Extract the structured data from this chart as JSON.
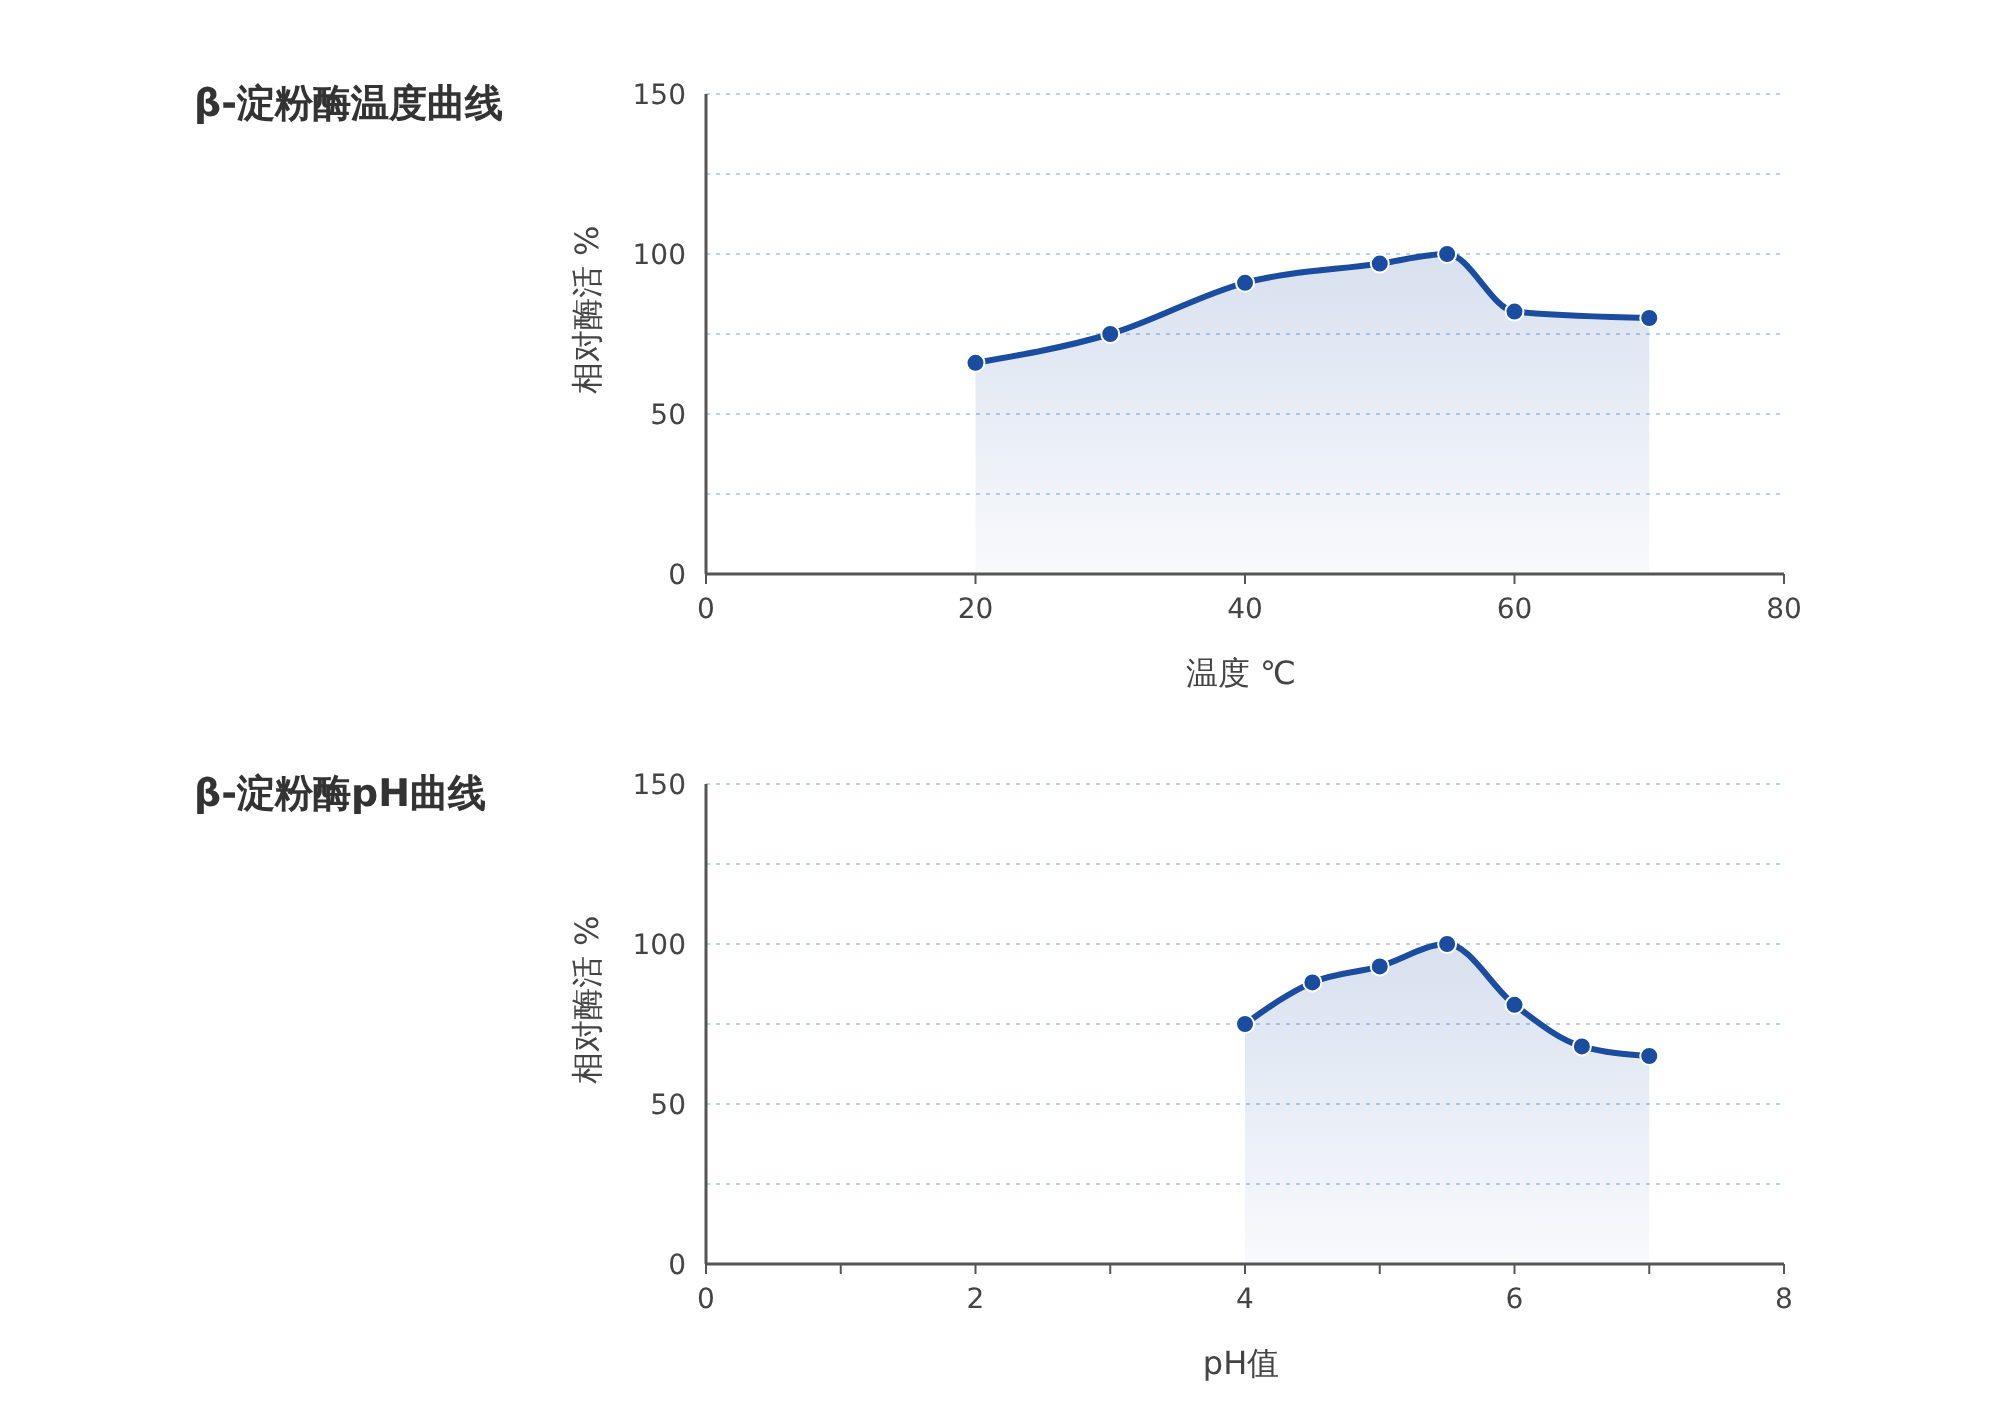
{
  "chart_data": [
    {
      "type": "area",
      "title": "β-淀粉酶温度曲线",
      "xlabel": "温度 ℃",
      "ylabel": "相对酶活 %",
      "xlim": [
        0,
        80
      ],
      "xticks": [
        0,
        20,
        40,
        60,
        80
      ],
      "ylim": [
        0,
        150
      ],
      "yticks": [
        0,
        {
          "value": 25,
          "label": null
        },
        50,
        {
          "value": 75,
          "label": null
        },
        100,
        {
          "value": 125,
          "label": null
        },
        150
      ],
      "grid": "y",
      "marker": "circle",
      "line_style": "solid",
      "series": [
        {
          "color": "#1a4ca0",
          "x": [
            20,
            30,
            40,
            50,
            55,
            60,
            70
          ],
          "values": [
            66,
            75,
            91,
            97,
            100,
            82,
            80
          ]
        }
      ]
    },
    {
      "type": "area",
      "title": "β-淀粉酶pH曲线",
      "xlabel": "pH值",
      "ylabel": "相对酶活 %",
      "xlim": [
        0,
        8
      ],
      "xticks": [
        0,
        {
          "value": 1,
          "label": null
        },
        2,
        {
          "value": 3,
          "label": null
        },
        4,
        {
          "value": 5,
          "label": null
        },
        6,
        {
          "value": 7,
          "label": null
        },
        8
      ],
      "ylim": [
        0,
        150
      ],
      "yticks": [
        0,
        {
          "value": 25,
          "label": null
        },
        50,
        {
          "value": 75,
          "label": null
        },
        100,
        {
          "value": 125,
          "label": null
        },
        150
      ],
      "grid": "y",
      "marker": "circle",
      "line_style": "solid",
      "series": [
        {
          "color": "#1a4ca0",
          "x": [
            4,
            4.5,
            5,
            5.5,
            6,
            6.5,
            7
          ],
          "values": [
            75,
            88,
            93,
            100,
            81,
            68,
            65
          ]
        }
      ]
    }
  ]
}
